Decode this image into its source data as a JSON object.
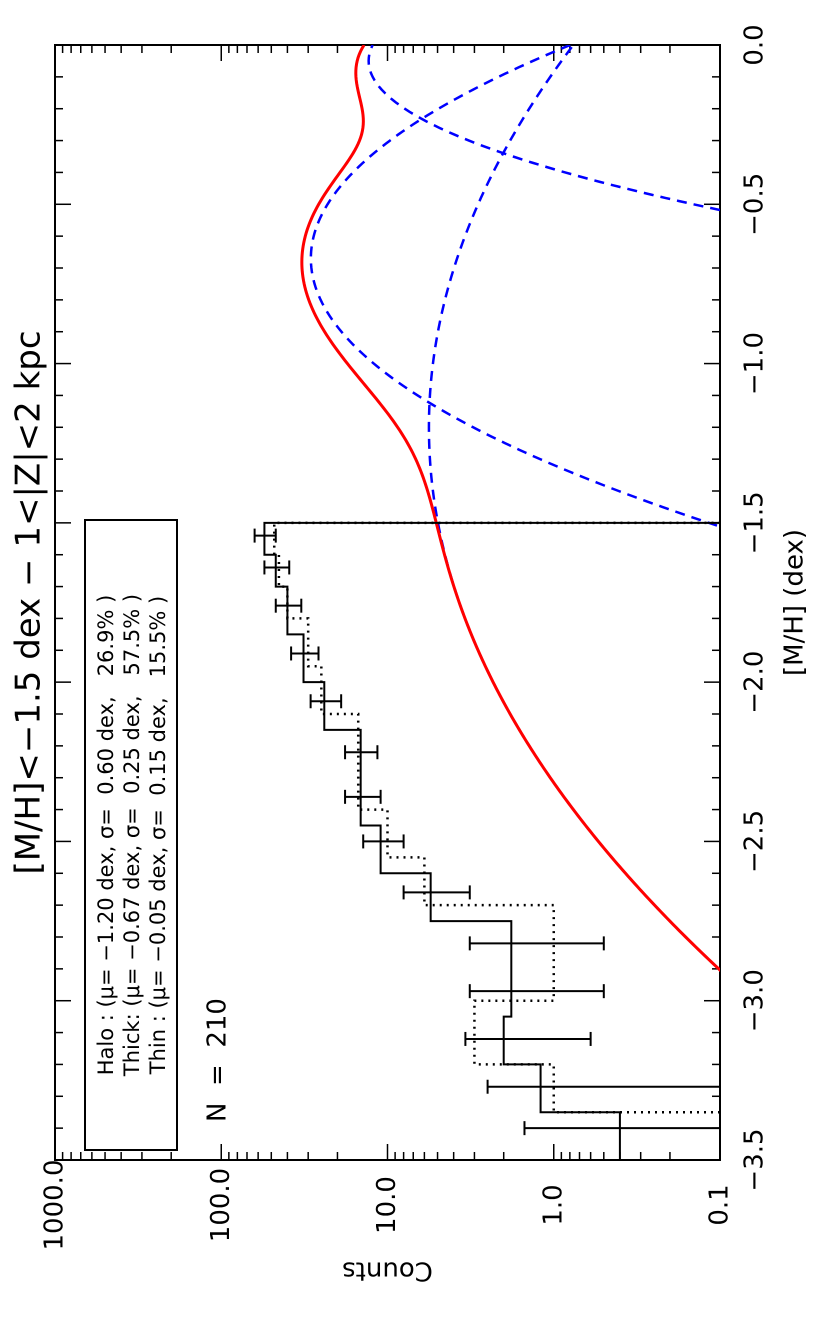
{
  "chart_data": {
    "type": "line",
    "orientation": "rotated 90 degrees counter-clockwise",
    "title": "[M/H]<−1.5 dex  −  1<|Z|<2 kpc",
    "xlabel": "[M/H] (dex)",
    "ylabel": "Counts",
    "yscale": "log",
    "xlim": [
      -3.5,
      0.0
    ],
    "ylim": [
      0.1,
      1000.0
    ],
    "x_ticks": [
      "−3.5",
      "−3.0",
      "−2.5",
      "−2.0",
      "−1.5",
      "−1.0",
      "−0.5",
      "0.0"
    ],
    "y_ticks": [
      "0.1",
      "1.0",
      "10.0",
      "100.0",
      "1000.0"
    ],
    "annotation": "N  =  210",
    "legend": {
      "placement": "top-left",
      "lines": [
        "Halo : (μ= −1.20 dex, σ=  0.60 dex,   26.9% )",
        "Thick: (μ= −0.67 dex, σ=  0.25 dex,   57.5% )",
        "Thin : (μ= −0.05 dex, σ=  0.15 dex,   15.5% )"
      ]
    },
    "histogram": {
      "bins_left": [
        -3.5,
        -3.35,
        -3.2,
        -3.05,
        -2.9,
        -2.75,
        -2.6,
        -2.45,
        -2.3,
        -2.15,
        -2.0,
        -1.85,
        -1.7,
        -1.6
      ],
      "bins_right": [
        -3.35,
        -3.2,
        -3.05,
        -2.9,
        -2.75,
        -2.6,
        -2.45,
        -2.3,
        -2.15,
        -2.0,
        -1.85,
        -1.7,
        -1.6,
        -1.5
      ],
      "counts": [
        0.4,
        1.2,
        2.0,
        1.8,
        1.8,
        5.5,
        11.0,
        14.5,
        14.5,
        24.0,
        32.0,
        40.0,
        47.0,
        55.0
      ],
      "err_x": [
        -3.4,
        -3.27,
        -3.12,
        -2.97,
        -2.82,
        -2.66,
        -2.5,
        -2.36,
        -2.22,
        -2.06,
        -1.91,
        -1.76,
        -1.64,
        -1.54
      ],
      "err_low": [
        0.1,
        0.1,
        0.6,
        0.5,
        0.5,
        3.2,
        8.0,
        11.0,
        11.5,
        19.0,
        26.0,
        33.0,
        39.0,
        47.0
      ],
      "err_high": [
        1.5,
        2.5,
        3.4,
        3.2,
        3.2,
        8.0,
        14.0,
        18.0,
        18.0,
        29.0,
        38.0,
        47.0,
        55.0,
        63.0
      ],
      "cut": -1.5
    },
    "dotted_histogram": {
      "edges": [
        -3.35,
        -3.2,
        -3.0,
        -2.85,
        -2.7,
        -2.55,
        -2.4,
        -2.25,
        -2.1,
        -1.95,
        -1.8,
        -1.7,
        -1.6,
        -1.5
      ],
      "counts": [
        1.0,
        3.0,
        1.0,
        1.0,
        6.0,
        10.0,
        15.0,
        15.0,
        25.0,
        30.0,
        40.0,
        45.0,
        48.0
      ]
    },
    "series": [
      {
        "components": [
          {
            "mu": -1.2,
            "sigma": 0.6,
            "frac": 0.269
          },
          {
            "mu": -0.67,
            "sigma": 0.25,
            "frac": 0.575
          },
          {
            "mu": -0.05,
            "sigma": 0.15,
            "frac": 0.155
          }
        ],
        "norm": 210,
        "binwidth": 0.15
      }
    ],
    "colors": {
      "model": "#ff0000",
      "components": "#0000ff",
      "axes": "#000000"
    }
  }
}
